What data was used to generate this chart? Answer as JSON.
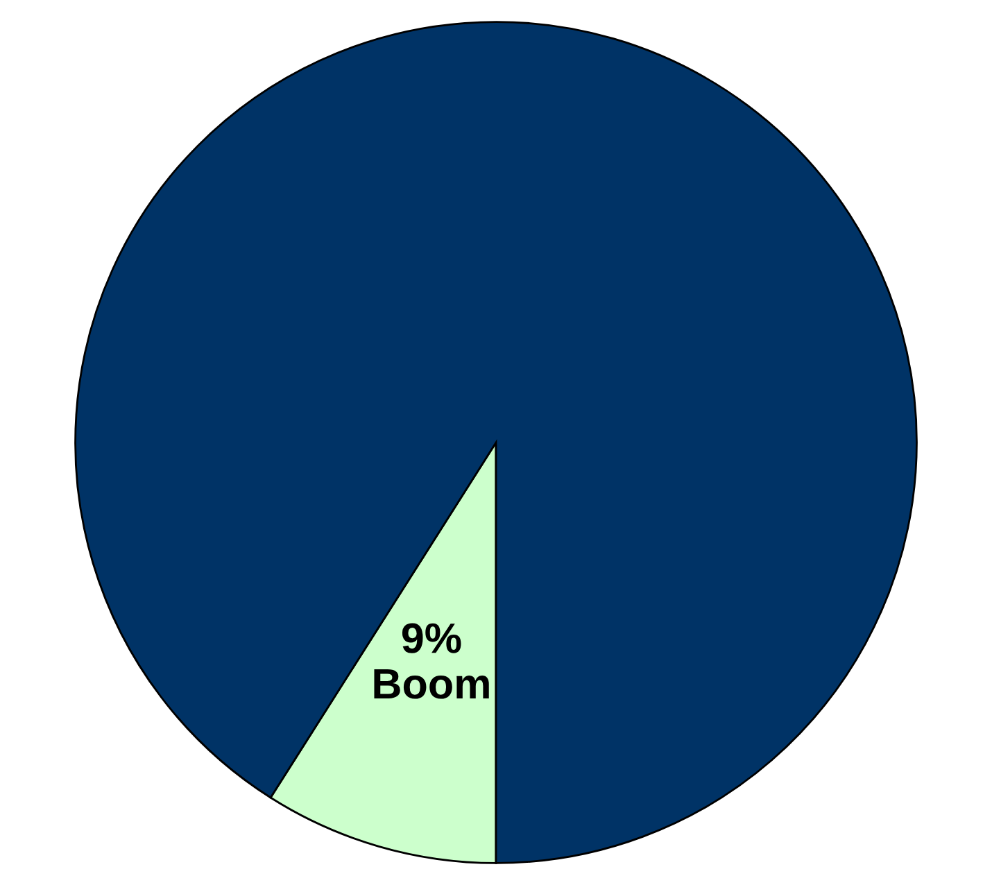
{
  "chart_data": {
    "type": "pie",
    "categories": [
      "Boom",
      null
    ],
    "values": [
      9,
      91
    ],
    "colors": [
      "#ccffcc",
      "#003366"
    ],
    "value_labels": [
      "9%",
      null
    ]
  }
}
